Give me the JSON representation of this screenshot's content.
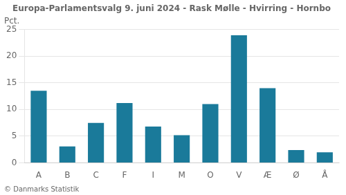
{
  "chart_data": {
    "type": "bar",
    "title": "Europa-Parlamentsvalg 9. juni 2024 - Rask Mølle - Hvirring - Hornbo",
    "categories": [
      "A",
      "B",
      "C",
      "F",
      "I",
      "M",
      "O",
      "V",
      "Æ",
      "Ø",
      "Å"
    ],
    "values": [
      13.5,
      3.1,
      7.5,
      11.2,
      6.8,
      5.2,
      11.0,
      23.9,
      14.0,
      2.4,
      2.0
    ],
    "color": "#1a7a9a",
    "ylabel": "Pct.",
    "footer": "© Danmarks Statistik",
    "ylim": [
      0,
      25
    ],
    "yticks": [
      0,
      5,
      10,
      15,
      20,
      25
    ],
    "grid": true
  }
}
